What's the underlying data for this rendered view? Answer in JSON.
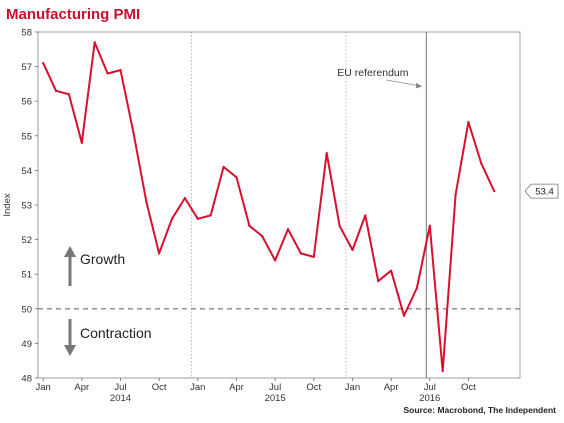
{
  "chart_data": {
    "type": "line",
    "title": "Manufacturing PMI",
    "ylabel": "Index",
    "ylim": [
      48,
      58
    ],
    "yticks": [
      48,
      49,
      50,
      51,
      52,
      53,
      54,
      55,
      56,
      57,
      58
    ],
    "x_tick_labels": [
      "Jan",
      "Apr",
      "Jul",
      "Oct",
      "Jan",
      "Apr",
      "Jul",
      "Oct",
      "Jan",
      "Apr",
      "Jul",
      "Oct"
    ],
    "x_tick_months": [
      0,
      3,
      6,
      9,
      12,
      15,
      18,
      21,
      24,
      27,
      30,
      33
    ],
    "year_labels": [
      {
        "label": "2014",
        "month": 6
      },
      {
        "label": "2015",
        "month": 18
      },
      {
        "label": "2016",
        "month": 30
      }
    ],
    "x": [
      "2014-01",
      "2014-02",
      "2014-03",
      "2014-04",
      "2014-05",
      "2014-06",
      "2014-07",
      "2014-08",
      "2014-09",
      "2014-10",
      "2014-11",
      "2014-12",
      "2015-01",
      "2015-02",
      "2015-03",
      "2015-04",
      "2015-05",
      "2015-06",
      "2015-07",
      "2015-08",
      "2015-09",
      "2015-10",
      "2015-11",
      "2015-12",
      "2016-01",
      "2016-02",
      "2016-03",
      "2016-04",
      "2016-05",
      "2016-06",
      "2016-07",
      "2016-08",
      "2016-09",
      "2016-10",
      "2016-11",
      "2016-12"
    ],
    "series": [
      {
        "color": "#d7102e",
        "values": [
          57.1,
          56.3,
          56.2,
          54.8,
          57.7,
          56.8,
          56.9,
          55.1,
          53.1,
          51.6,
          52.6,
          53.2,
          52.6,
          52.7,
          54.1,
          53.8,
          52.4,
          52.1,
          51.4,
          52.3,
          51.6,
          51.5,
          54.5,
          52.4,
          51.7,
          52.7,
          50.8,
          51.1,
          49.8,
          50.6,
          52.4,
          48.2,
          53.3,
          55.4,
          54.2,
          53.4
        ]
      }
    ],
    "reference_line": {
      "value": 50,
      "style": "dashed"
    },
    "event_line": {
      "label": "EU referendum",
      "date": "2016-06-23"
    },
    "last_value_label": "53.4",
    "annotations": {
      "growth": "Growth",
      "contraction": "Contraction"
    },
    "source": "Source: Macrobond, The Independent",
    "grid": "vertical year separators"
  }
}
